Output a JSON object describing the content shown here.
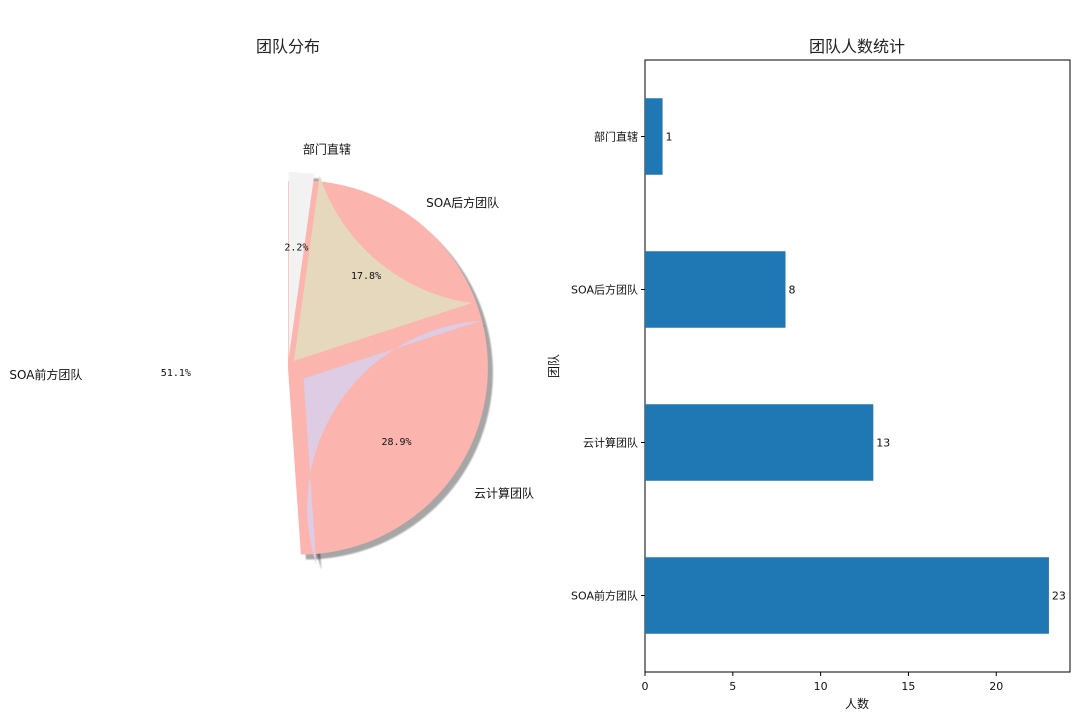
{
  "chart_data": [
    {
      "type": "pie",
      "title": "团队分布",
      "labels": [
        "SOA前方团队",
        "云计算团队",
        "SOA后方团队",
        "部门直辖"
      ],
      "values": [
        51.1,
        28.9,
        17.8,
        2.2
      ],
      "percent_labels": [
        "51.1%",
        "28.9%",
        "17.8%",
        "2.2%"
      ],
      "colors": [
        "#fbb4ae",
        "#decbe4",
        "#e5d8bd",
        "#f2f2f2"
      ],
      "explode": [
        0,
        0.1,
        0.05,
        0.05
      ],
      "shadow": true,
      "start_angle": 90
    },
    {
      "type": "bar",
      "orientation": "horizontal",
      "title": "团队人数统计",
      "categories": [
        "SOA前方团队",
        "云计算团队",
        "SOA后方团队",
        "部门直辖"
      ],
      "values": [
        23,
        13,
        8,
        1
      ],
      "value_labels": [
        "23",
        "13",
        "8",
        "1"
      ],
      "xlabel": "人数",
      "ylabel": "团队",
      "xlim": [
        0,
        24.2
      ],
      "xticks": [
        "0",
        "5",
        "10",
        "15",
        "20"
      ],
      "bar_color": "#1f77b4",
      "grid": false
    }
  ]
}
